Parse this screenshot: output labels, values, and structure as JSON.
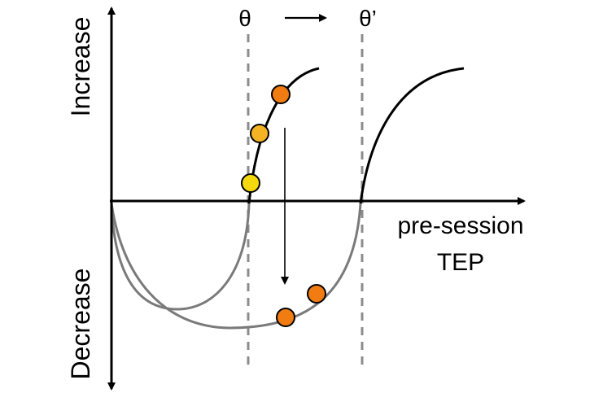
{
  "labels": {
    "y_top": "Increase",
    "y_bottom": "Decrease",
    "x_axis_line1": "pre-session",
    "x_axis_line2": "TEP",
    "theta": "θ",
    "theta_prime": "θ’"
  },
  "colors": {
    "axis": "#000000",
    "curve_dark": "#000000",
    "curve_gray": "#7a7a7a",
    "threshold_dash": "#8c8c8c",
    "dot_yellow": "#f5d90f",
    "dot_light_orange": "#f4b323",
    "dot_orange": "#f07c12",
    "dot_stroke": "#000000"
  }
}
